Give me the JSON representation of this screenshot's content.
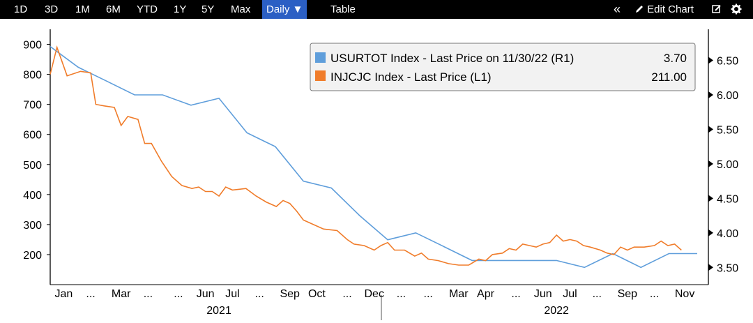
{
  "toolbar": {
    "ranges": [
      "1D",
      "3D",
      "1M",
      "6M",
      "YTD",
      "1Y",
      "5Y",
      "Max"
    ],
    "frequency": "Daily ▼",
    "table": "Table",
    "collapse": "«",
    "edit_chart": "Edit Chart"
  },
  "colors": {
    "usurtot": "#5f9edb",
    "injcjc": "#f07c2a",
    "active": "#2b5fc4"
  },
  "chart_data": {
    "type": "line",
    "x_range": [
      2021.0,
      2022.95
    ],
    "ylim_left": [
      100,
      950
    ],
    "ylim_right": [
      3.25,
      6.95
    ],
    "left_ticks": [
      "900",
      "800",
      "700",
      "600",
      "500",
      "400",
      "300",
      "200"
    ],
    "right_ticks": [
      "6.50",
      "6.00",
      "5.50",
      "5.00",
      "4.50",
      "4.00",
      "3.50"
    ],
    "month_labels": [
      {
        "t": 2021.04,
        "label": "Jan"
      },
      {
        "t": 2021.12,
        "label": "..."
      },
      {
        "t": 2021.21,
        "label": "Mar"
      },
      {
        "t": 2021.29,
        "label": "..."
      },
      {
        "t": 2021.38,
        "label": "..."
      },
      {
        "t": 2021.46,
        "label": "Jun"
      },
      {
        "t": 2021.54,
        "label": "Jul"
      },
      {
        "t": 2021.62,
        "label": "..."
      },
      {
        "t": 2021.71,
        "label": "Sep"
      },
      {
        "t": 2021.79,
        "label": "Oct"
      },
      {
        "t": 2021.88,
        "label": "..."
      },
      {
        "t": 2021.96,
        "label": "Dec"
      },
      {
        "t": 2022.04,
        "label": "..."
      },
      {
        "t": 2022.12,
        "label": "..."
      },
      {
        "t": 2022.21,
        "label": "Mar"
      },
      {
        "t": 2022.29,
        "label": "Apr"
      },
      {
        "t": 2022.38,
        "label": "..."
      },
      {
        "t": 2022.46,
        "label": "Jun"
      },
      {
        "t": 2022.54,
        "label": "Jul"
      },
      {
        "t": 2022.62,
        "label": "..."
      },
      {
        "t": 2022.71,
        "label": "Sep"
      },
      {
        "t": 2022.79,
        "label": "..."
      },
      {
        "t": 2022.88,
        "label": "Nov"
      }
    ],
    "year_labels": [
      {
        "t": 2021.5,
        "label": "2021"
      },
      {
        "t": 2022.5,
        "label": "2022"
      }
    ],
    "series": [
      {
        "name": "USURTOT Index - Last Price on 11/30/22 (R1)",
        "value_label": "3.70",
        "axis": "right",
        "color": "#5f9edb",
        "points": [
          [
            2021.0,
            6.7
          ],
          [
            2021.083,
            6.4
          ],
          [
            2021.167,
            6.2
          ],
          [
            2021.25,
            6.0
          ],
          [
            2021.333,
            6.0
          ],
          [
            2021.417,
            5.85
          ],
          [
            2021.5,
            5.95
          ],
          [
            2021.583,
            5.45
          ],
          [
            2021.667,
            5.25
          ],
          [
            2021.75,
            4.75
          ],
          [
            2021.833,
            4.65
          ],
          [
            2021.917,
            4.25
          ],
          [
            2022.0,
            3.9
          ],
          [
            2022.083,
            4.0
          ],
          [
            2022.167,
            3.8
          ],
          [
            2022.25,
            3.6
          ],
          [
            2022.333,
            3.6
          ],
          [
            2022.417,
            3.6
          ],
          [
            2022.5,
            3.6
          ],
          [
            2022.583,
            3.5
          ],
          [
            2022.667,
            3.7
          ],
          [
            2022.75,
            3.5
          ],
          [
            2022.833,
            3.7
          ],
          [
            2022.917,
            3.7
          ]
        ]
      },
      {
        "name": "INJCJC Index - Last Price (L1)",
        "value_label": "211.00",
        "axis": "left",
        "color": "#f07c2a",
        "points": [
          [
            2021.0,
            800
          ],
          [
            2021.02,
            890
          ],
          [
            2021.05,
            795
          ],
          [
            2021.09,
            810
          ],
          [
            2021.12,
            805
          ],
          [
            2021.135,
            700
          ],
          [
            2021.16,
            695
          ],
          [
            2021.19,
            690
          ],
          [
            2021.21,
            630
          ],
          [
            2021.23,
            660
          ],
          [
            2021.26,
            650
          ],
          [
            2021.28,
            570
          ],
          [
            2021.3,
            570
          ],
          [
            2021.33,
            510
          ],
          [
            2021.36,
            460
          ],
          [
            2021.39,
            430
          ],
          [
            2021.42,
            420
          ],
          [
            2021.44,
            425
          ],
          [
            2021.46,
            410
          ],
          [
            2021.48,
            410
          ],
          [
            2021.5,
            395
          ],
          [
            2021.52,
            425
          ],
          [
            2021.54,
            415
          ],
          [
            2021.58,
            420
          ],
          [
            2021.61,
            395
          ],
          [
            2021.64,
            375
          ],
          [
            2021.67,
            360
          ],
          [
            2021.69,
            380
          ],
          [
            2021.71,
            370
          ],
          [
            2021.73,
            345
          ],
          [
            2021.75,
            315
          ],
          [
            2021.78,
            300
          ],
          [
            2021.81,
            285
          ],
          [
            2021.85,
            280
          ],
          [
            2021.88,
            250
          ],
          [
            2021.9,
            235
          ],
          [
            2021.93,
            230
          ],
          [
            2021.96,
            215
          ],
          [
            2021.98,
            230
          ],
          [
            2022.0,
            240
          ],
          [
            2022.02,
            215
          ],
          [
            2022.05,
            215
          ],
          [
            2022.08,
            195
          ],
          [
            2022.1,
            205
          ],
          [
            2022.12,
            185
          ],
          [
            2022.15,
            180
          ],
          [
            2022.18,
            170
          ],
          [
            2022.21,
            165
          ],
          [
            2022.24,
            165
          ],
          [
            2022.27,
            185
          ],
          [
            2022.29,
            180
          ],
          [
            2022.31,
            200
          ],
          [
            2022.34,
            205
          ],
          [
            2022.36,
            220
          ],
          [
            2022.38,
            215
          ],
          [
            2022.4,
            235
          ],
          [
            2022.42,
            230
          ],
          [
            2022.44,
            225
          ],
          [
            2022.46,
            235
          ],
          [
            2022.48,
            240
          ],
          [
            2022.5,
            265
          ],
          [
            2022.52,
            245
          ],
          [
            2022.54,
            250
          ],
          [
            2022.56,
            245
          ],
          [
            2022.58,
            230
          ],
          [
            2022.6,
            225
          ],
          [
            2022.63,
            215
          ],
          [
            2022.65,
            205
          ],
          [
            2022.67,
            200
          ],
          [
            2022.69,
            225
          ],
          [
            2022.71,
            215
          ],
          [
            2022.73,
            225
          ],
          [
            2022.76,
            225
          ],
          [
            2022.79,
            230
          ],
          [
            2022.81,
            245
          ],
          [
            2022.83,
            230
          ],
          [
            2022.85,
            235
          ],
          [
            2022.87,
            215
          ]
        ]
      }
    ]
  }
}
